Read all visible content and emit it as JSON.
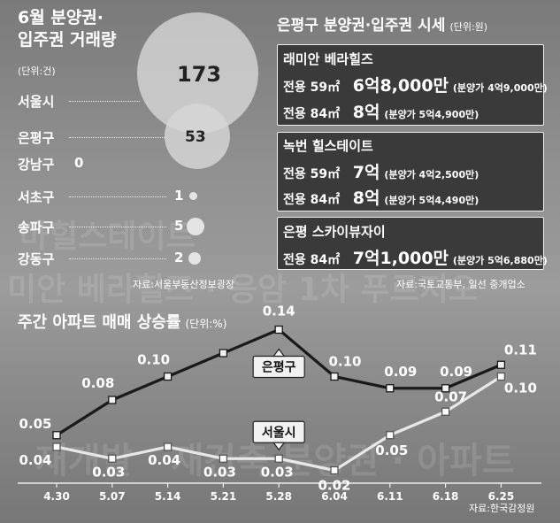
{
  "left_panel": {
    "title_line1": "6월 분양권·",
    "title_line2": "입주권 거래량",
    "unit": "(단위:건)",
    "regions": [
      {
        "name": "서울시",
        "value": "173"
      },
      {
        "name": "은평구",
        "value": "53"
      },
      {
        "name": "강남구",
        "value": "0"
      },
      {
        "name": "서초구",
        "value": "1"
      },
      {
        "name": "송파구",
        "value": "5"
      },
      {
        "name": "강동구",
        "value": "2"
      }
    ],
    "source": "자료:서울부동산정보광장"
  },
  "right_panel": {
    "title": "은평구 분양권·입주권 시세",
    "unit": "(단위:원)",
    "complexes": [
      {
        "name": "래미안 베라힐즈",
        "rows": [
          {
            "area": "전용 59㎡",
            "price": "6억8,000만",
            "presale": "(분양가 4억9,000만)"
          },
          {
            "area": "전용 84㎡",
            "price": "8억",
            "presale": "(분양가 5억4,900만)"
          }
        ]
      },
      {
        "name": "녹번 힐스테이트",
        "rows": [
          {
            "area": "전용 59㎡",
            "price": "7억",
            "presale": "(분양가 4억2,500만)"
          },
          {
            "area": "전용 84㎡",
            "price": "8억",
            "presale": "(분양가 5억4,490만)"
          }
        ]
      },
      {
        "name": "은평 스카이뷰자이",
        "rows": [
          {
            "area": "전용 84㎡",
            "price": "7억1,000만",
            "presale": "(분양가 5억6,880만)"
          }
        ]
      }
    ],
    "source": "자료:국토교통부, 일선 중개업소"
  },
  "background_text": [
    "마힐스테이트",
    "미안 베라힐즈 · 응암 1차 푸르지오",
    "재개발 · 재건축 분양권 · 아파트"
  ],
  "chart_data": {
    "type": "line",
    "title": "주간 아파트 매매 상승률",
    "unit": "(단위:%)",
    "categories": [
      "4.30",
      "5.07",
      "5.14",
      "5.21",
      "5.28",
      "6.04",
      "6.11",
      "6.18",
      "6.25"
    ],
    "series": [
      {
        "name": "은평구",
        "values": [
          0.05,
          0.08,
          0.1,
          0.12,
          0.14,
          0.1,
          0.09,
          0.09,
          0.11
        ],
        "labels": [
          "0.05",
          "0.08",
          "0.10",
          "",
          "0.14",
          "0.10",
          "0.09",
          "0.09",
          "0.11"
        ],
        "color": "#1a1a1a"
      },
      {
        "name": "서울시",
        "values": [
          0.04,
          0.03,
          0.04,
          0.03,
          0.03,
          0.02,
          0.05,
          0.07,
          0.1
        ],
        "labels": [
          "0.04",
          "0.03",
          "0.04",
          "0.03",
          "0.03",
          "0.02",
          "0.05",
          "0.07",
          "0.10"
        ],
        "color": "#e8e8e8"
      }
    ],
    "source": "자료:한국감정원"
  }
}
